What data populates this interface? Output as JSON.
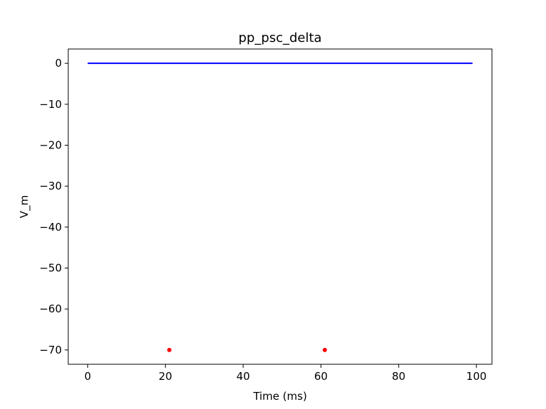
{
  "chart_data": {
    "type": "line",
    "title": "pp_psc_delta",
    "xlabel": "Time (ms)",
    "ylabel": "V_m",
    "xlim": [
      -5,
      104
    ],
    "ylim": [
      -73.5,
      3.5
    ],
    "x_ticks": [
      0,
      20,
      40,
      60,
      80,
      100
    ],
    "x_tick_labels": [
      "0",
      "20",
      "40",
      "60",
      "80",
      "100"
    ],
    "y_ticks": [
      0,
      -10,
      -20,
      -30,
      -40,
      -50,
      -60,
      -70
    ],
    "y_tick_labels": [
      "0",
      "−10",
      "−20",
      "−30",
      "−40",
      "−50",
      "−60",
      "−70"
    ],
    "grid": false,
    "series": [
      {
        "type": "line",
        "color": "#0000ff",
        "x": [
          0,
          99
        ],
        "y": [
          0,
          0
        ]
      },
      {
        "type": "scatter",
        "color": "#ff0000",
        "x": [
          21,
          61
        ],
        "y": [
          -70,
          -70
        ]
      }
    ]
  }
}
